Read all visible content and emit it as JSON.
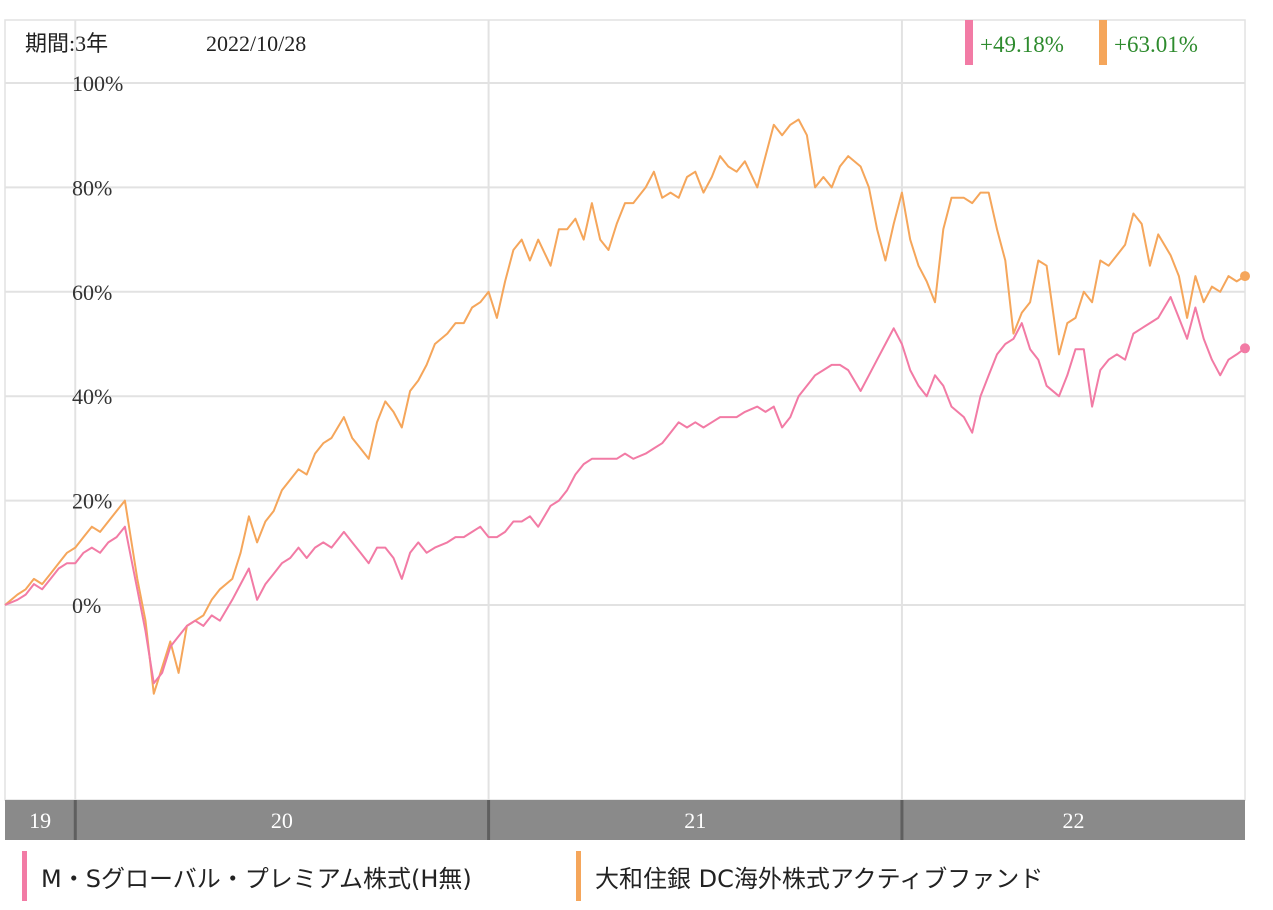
{
  "header": {
    "period_label": "期間:3年",
    "date_label": "2022/10/28"
  },
  "colors": {
    "series1": "#f27ba5",
    "series2": "#f5a65b",
    "return_text": "#2e8b2e",
    "grid": "#e2e2e2",
    "axis_bar": "#8a8a8a"
  },
  "returns": [
    {
      "value": "+49.18%",
      "color": "#f27ba5"
    },
    {
      "value": "+63.01%",
      "color": "#f5a65b"
    }
  ],
  "legend": [
    {
      "label": "M・Sグローバル・プレミアム株式(H無)",
      "color": "#f27ba5"
    },
    {
      "label": "大和住銀 DC海外株式アクティブファンド",
      "color": "#f5a65b"
    }
  ],
  "chart_data": {
    "type": "line",
    "ylim": [
      -37,
      100
    ],
    "yticks": [
      {
        "value": 100,
        "label": "100%"
      },
      {
        "value": 80,
        "label": "80%"
      },
      {
        "value": 60,
        "label": "60%"
      },
      {
        "value": 40,
        "label": "40%"
      },
      {
        "value": 20,
        "label": "20%"
      },
      {
        "value": 0,
        "label": "0%"
      }
    ],
    "xlim": [
      2019.83,
      2022.83
    ],
    "xticks": [
      {
        "label": "19",
        "start": 2019.83,
        "end": 2020.0
      },
      {
        "label": "20",
        "start": 2020.0,
        "end": 2021.0
      },
      {
        "label": "21",
        "start": 2021.0,
        "end": 2022.0
      },
      {
        "label": "22",
        "start": 2022.0,
        "end": 2022.83
      }
    ],
    "series": [
      {
        "name": "M・Sグローバル・プレミアム株式(H無)",
        "color": "#f27ba5",
        "final_value": 49.18,
        "points": [
          [
            2019.83,
            0
          ],
          [
            2019.86,
            1
          ],
          [
            2019.88,
            2
          ],
          [
            2019.9,
            4
          ],
          [
            2019.92,
            3
          ],
          [
            2019.94,
            5
          ],
          [
            2019.96,
            7
          ],
          [
            2019.98,
            8
          ],
          [
            2020.0,
            8
          ],
          [
            2020.02,
            10
          ],
          [
            2020.04,
            11
          ],
          [
            2020.06,
            10
          ],
          [
            2020.08,
            12
          ],
          [
            2020.1,
            13
          ],
          [
            2020.12,
            15
          ],
          [
            2020.15,
            3
          ],
          [
            2020.17,
            -5
          ],
          [
            2020.19,
            -15
          ],
          [
            2020.21,
            -13
          ],
          [
            2020.23,
            -8
          ],
          [
            2020.25,
            -6
          ],
          [
            2020.27,
            -4
          ],
          [
            2020.29,
            -3
          ],
          [
            2020.31,
            -4
          ],
          [
            2020.33,
            -2
          ],
          [
            2020.35,
            -3
          ],
          [
            2020.38,
            1
          ],
          [
            2020.4,
            4
          ],
          [
            2020.42,
            7
          ],
          [
            2020.44,
            1
          ],
          [
            2020.46,
            4
          ],
          [
            2020.48,
            6
          ],
          [
            2020.5,
            8
          ],
          [
            2020.52,
            9
          ],
          [
            2020.54,
            11
          ],
          [
            2020.56,
            9
          ],
          [
            2020.58,
            11
          ],
          [
            2020.6,
            12
          ],
          [
            2020.62,
            11
          ],
          [
            2020.65,
            14
          ],
          [
            2020.67,
            12
          ],
          [
            2020.69,
            10
          ],
          [
            2020.71,
            8
          ],
          [
            2020.73,
            11
          ],
          [
            2020.75,
            11
          ],
          [
            2020.77,
            9
          ],
          [
            2020.79,
            5
          ],
          [
            2020.81,
            10
          ],
          [
            2020.83,
            12
          ],
          [
            2020.85,
            10
          ],
          [
            2020.87,
            11
          ],
          [
            2020.9,
            12
          ],
          [
            2020.92,
            13
          ],
          [
            2020.94,
            13
          ],
          [
            2020.96,
            14
          ],
          [
            2020.98,
            15
          ],
          [
            2021.0,
            13
          ],
          [
            2021.02,
            13
          ],
          [
            2021.04,
            14
          ],
          [
            2021.06,
            16
          ],
          [
            2021.08,
            16
          ],
          [
            2021.1,
            17
          ],
          [
            2021.12,
            15
          ],
          [
            2021.15,
            19
          ],
          [
            2021.17,
            20
          ],
          [
            2021.19,
            22
          ],
          [
            2021.21,
            25
          ],
          [
            2021.23,
            27
          ],
          [
            2021.25,
            28
          ],
          [
            2021.27,
            28
          ],
          [
            2021.29,
            28
          ],
          [
            2021.31,
            28
          ],
          [
            2021.33,
            29
          ],
          [
            2021.35,
            28
          ],
          [
            2021.38,
            29
          ],
          [
            2021.4,
            30
          ],
          [
            2021.42,
            31
          ],
          [
            2021.44,
            33
          ],
          [
            2021.46,
            35
          ],
          [
            2021.48,
            34
          ],
          [
            2021.5,
            35
          ],
          [
            2021.52,
            34
          ],
          [
            2021.54,
            35
          ],
          [
            2021.56,
            36
          ],
          [
            2021.58,
            36
          ],
          [
            2021.6,
            36
          ],
          [
            2021.62,
            37
          ],
          [
            2021.65,
            38
          ],
          [
            2021.67,
            37
          ],
          [
            2021.69,
            38
          ],
          [
            2021.71,
            34
          ],
          [
            2021.73,
            36
          ],
          [
            2021.75,
            40
          ],
          [
            2021.77,
            42
          ],
          [
            2021.79,
            44
          ],
          [
            2021.81,
            45
          ],
          [
            2021.83,
            46
          ],
          [
            2021.85,
            46
          ],
          [
            2021.87,
            45
          ],
          [
            2021.9,
            41
          ],
          [
            2021.92,
            44
          ],
          [
            2021.94,
            47
          ],
          [
            2021.96,
            50
          ],
          [
            2021.98,
            53
          ],
          [
            2022.0,
            50
          ],
          [
            2022.02,
            45
          ],
          [
            2022.04,
            42
          ],
          [
            2022.06,
            40
          ],
          [
            2022.08,
            44
          ],
          [
            2022.1,
            42
          ],
          [
            2022.12,
            38
          ],
          [
            2022.15,
            36
          ],
          [
            2022.17,
            33
          ],
          [
            2022.19,
            40
          ],
          [
            2022.21,
            44
          ],
          [
            2022.23,
            48
          ],
          [
            2022.25,
            50
          ],
          [
            2022.27,
            51
          ],
          [
            2022.29,
            54
          ],
          [
            2022.31,
            49
          ],
          [
            2022.33,
            47
          ],
          [
            2022.35,
            42
          ],
          [
            2022.38,
            40
          ],
          [
            2022.4,
            44
          ],
          [
            2022.42,
            49
          ],
          [
            2022.44,
            49
          ],
          [
            2022.46,
            38
          ],
          [
            2022.48,
            45
          ],
          [
            2022.5,
            47
          ],
          [
            2022.52,
            48
          ],
          [
            2022.54,
            47
          ],
          [
            2022.56,
            52
          ],
          [
            2022.58,
            53
          ],
          [
            2022.6,
            54
          ],
          [
            2022.62,
            55
          ],
          [
            2022.65,
            59
          ],
          [
            2022.67,
            55
          ],
          [
            2022.69,
            51
          ],
          [
            2022.71,
            57
          ],
          [
            2022.73,
            51
          ],
          [
            2022.75,
            47
          ],
          [
            2022.77,
            44
          ],
          [
            2022.79,
            47
          ],
          [
            2022.81,
            48
          ],
          [
            2022.83,
            49.18
          ]
        ]
      },
      {
        "name": "大和住銀 DC海外株式アクティブファンド",
        "color": "#f5a65b",
        "final_value": 63.01,
        "points": [
          [
            2019.83,
            0
          ],
          [
            2019.86,
            2
          ],
          [
            2019.88,
            3
          ],
          [
            2019.9,
            5
          ],
          [
            2019.92,
            4
          ],
          [
            2019.94,
            6
          ],
          [
            2019.96,
            8
          ],
          [
            2019.98,
            10
          ],
          [
            2020.0,
            11
          ],
          [
            2020.02,
            13
          ],
          [
            2020.04,
            15
          ],
          [
            2020.06,
            14
          ],
          [
            2020.08,
            16
          ],
          [
            2020.1,
            18
          ],
          [
            2020.12,
            20
          ],
          [
            2020.15,
            5
          ],
          [
            2020.17,
            -3
          ],
          [
            2020.19,
            -17
          ],
          [
            2020.21,
            -12
          ],
          [
            2020.23,
            -7
          ],
          [
            2020.25,
            -13
          ],
          [
            2020.27,
            -4
          ],
          [
            2020.29,
            -3
          ],
          [
            2020.31,
            -2
          ],
          [
            2020.33,
            1
          ],
          [
            2020.35,
            3
          ],
          [
            2020.38,
            5
          ],
          [
            2020.4,
            10
          ],
          [
            2020.42,
            17
          ],
          [
            2020.44,
            12
          ],
          [
            2020.46,
            16
          ],
          [
            2020.48,
            18
          ],
          [
            2020.5,
            22
          ],
          [
            2020.52,
            24
          ],
          [
            2020.54,
            26
          ],
          [
            2020.56,
            25
          ],
          [
            2020.58,
            29
          ],
          [
            2020.6,
            31
          ],
          [
            2020.62,
            32
          ],
          [
            2020.65,
            36
          ],
          [
            2020.67,
            32
          ],
          [
            2020.69,
            30
          ],
          [
            2020.71,
            28
          ],
          [
            2020.73,
            35
          ],
          [
            2020.75,
            39
          ],
          [
            2020.77,
            37
          ],
          [
            2020.79,
            34
          ],
          [
            2020.81,
            41
          ],
          [
            2020.83,
            43
          ],
          [
            2020.85,
            46
          ],
          [
            2020.87,
            50
          ],
          [
            2020.9,
            52
          ],
          [
            2020.92,
            54
          ],
          [
            2020.94,
            54
          ],
          [
            2020.96,
            57
          ],
          [
            2020.98,
            58
          ],
          [
            2021.0,
            60
          ],
          [
            2021.02,
            55
          ],
          [
            2021.04,
            62
          ],
          [
            2021.06,
            68
          ],
          [
            2021.08,
            70
          ],
          [
            2021.1,
            66
          ],
          [
            2021.12,
            70
          ],
          [
            2021.15,
            65
          ],
          [
            2021.17,
            72
          ],
          [
            2021.19,
            72
          ],
          [
            2021.21,
            74
          ],
          [
            2021.23,
            70
          ],
          [
            2021.25,
            77
          ],
          [
            2021.27,
            70
          ],
          [
            2021.29,
            68
          ],
          [
            2021.31,
            73
          ],
          [
            2021.33,
            77
          ],
          [
            2021.35,
            77
          ],
          [
            2021.38,
            80
          ],
          [
            2021.4,
            83
          ],
          [
            2021.42,
            78
          ],
          [
            2021.44,
            79
          ],
          [
            2021.46,
            78
          ],
          [
            2021.48,
            82
          ],
          [
            2021.5,
            83
          ],
          [
            2021.52,
            79
          ],
          [
            2021.54,
            82
          ],
          [
            2021.56,
            86
          ],
          [
            2021.58,
            84
          ],
          [
            2021.6,
            83
          ],
          [
            2021.62,
            85
          ],
          [
            2021.65,
            80
          ],
          [
            2021.67,
            86
          ],
          [
            2021.69,
            92
          ],
          [
            2021.71,
            90
          ],
          [
            2021.73,
            92
          ],
          [
            2021.75,
            93
          ],
          [
            2021.77,
            90
          ],
          [
            2021.79,
            80
          ],
          [
            2021.81,
            82
          ],
          [
            2021.83,
            80
          ],
          [
            2021.85,
            84
          ],
          [
            2021.87,
            86
          ],
          [
            2021.9,
            84
          ],
          [
            2021.92,
            80
          ],
          [
            2021.94,
            72
          ],
          [
            2021.96,
            66
          ],
          [
            2021.98,
            73
          ],
          [
            2022.0,
            79
          ],
          [
            2022.02,
            70
          ],
          [
            2022.04,
            65
          ],
          [
            2022.06,
            62
          ],
          [
            2022.08,
            58
          ],
          [
            2022.1,
            72
          ],
          [
            2022.12,
            78
          ],
          [
            2022.15,
            78
          ],
          [
            2022.17,
            77
          ],
          [
            2022.19,
            79
          ],
          [
            2022.21,
            79
          ],
          [
            2022.23,
            72
          ],
          [
            2022.25,
            66
          ],
          [
            2022.27,
            52
          ],
          [
            2022.29,
            56
          ],
          [
            2022.31,
            58
          ],
          [
            2022.33,
            66
          ],
          [
            2022.35,
            65
          ],
          [
            2022.38,
            48
          ],
          [
            2022.4,
            54
          ],
          [
            2022.42,
            55
          ],
          [
            2022.44,
            60
          ],
          [
            2022.46,
            58
          ],
          [
            2022.48,
            66
          ],
          [
            2022.5,
            65
          ],
          [
            2022.52,
            67
          ],
          [
            2022.54,
            69
          ],
          [
            2022.56,
            75
          ],
          [
            2022.58,
            73
          ],
          [
            2022.6,
            65
          ],
          [
            2022.62,
            71
          ],
          [
            2022.65,
            67
          ],
          [
            2022.67,
            63
          ],
          [
            2022.69,
            55
          ],
          [
            2022.71,
            63
          ],
          [
            2022.73,
            58
          ],
          [
            2022.75,
            61
          ],
          [
            2022.77,
            60
          ],
          [
            2022.79,
            63
          ],
          [
            2022.81,
            62
          ],
          [
            2022.83,
            63.01
          ]
        ]
      }
    ]
  }
}
